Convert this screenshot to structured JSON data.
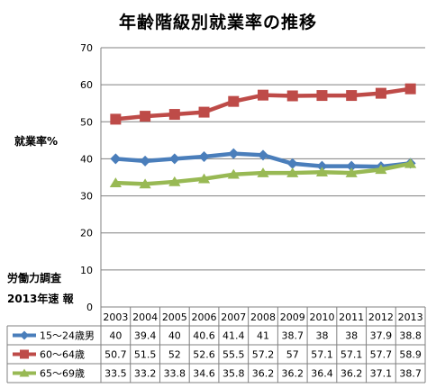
{
  "title": "年齢階級別就業率の推移",
  "ylabel": "就業率%",
  "source_line1": "労働力調査",
  "source_line2": "2013年速 報",
  "chart_data": {
    "type": "line",
    "title": "年齢階級別就業率の推移",
    "ylabel": "就業率%",
    "xlabel": "",
    "ylim": [
      0,
      70
    ],
    "yticks": [
      "0",
      "10",
      "20",
      "30",
      "40",
      "50",
      "60",
      "70"
    ],
    "grid": true,
    "legend_placement": "data table rows below chart",
    "categories": [
      "2003",
      "2004",
      "2005",
      "2006",
      "2007",
      "2008",
      "2009",
      "2010",
      "2011",
      "2012",
      "2013"
    ],
    "series": [
      {
        "name": "15〜24歳男",
        "color": "#4a7ebb",
        "marker": "diamond",
        "values": [
          40,
          39.4,
          40,
          40.6,
          41.4,
          41,
          38.7,
          38,
          38,
          37.9,
          38.8
        ],
        "labels": [
          "40",
          "39.4",
          "40",
          "40.6",
          "41.4",
          "41",
          "38.7",
          "38",
          "38",
          "37.9",
          "38.8"
        ]
      },
      {
        "name": "60〜64歳",
        "color": "#be4b48",
        "marker": "square",
        "values": [
          50.7,
          51.5,
          52,
          52.6,
          55.5,
          57.2,
          57,
          57.1,
          57.1,
          57.7,
          58.9
        ],
        "labels": [
          "50.7",
          "51.5",
          "52",
          "52.6",
          "55.5",
          "57.2",
          "57",
          "57.1",
          "57.1",
          "57.7",
          "58.9"
        ]
      },
      {
        "name": "65〜69歳",
        "color": "#98b954",
        "marker": "triangle",
        "values": [
          33.5,
          33.2,
          33.8,
          34.6,
          35.8,
          36.2,
          36.2,
          36.4,
          36.2,
          37.1,
          38.7
        ],
        "labels": [
          "33.5",
          "33.2",
          "33.8",
          "34.6",
          "35.8",
          "36.2",
          "36.2",
          "36.4",
          "36.2",
          "37.1",
          "38.7"
        ]
      }
    ]
  }
}
